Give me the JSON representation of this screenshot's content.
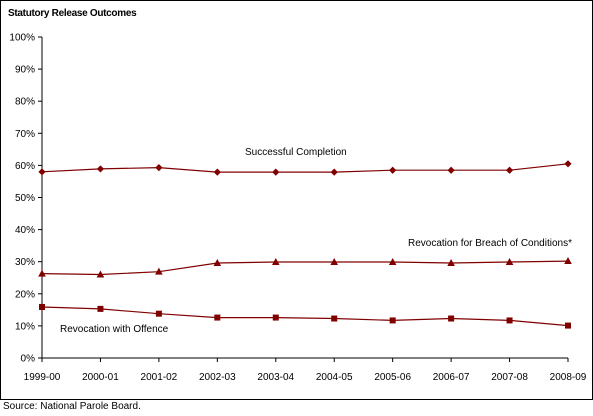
{
  "chart_data": {
    "type": "line",
    "title": "Statutory Release Outcomes",
    "source": "Source: National Parole Board.",
    "categories": [
      "1999-00",
      "2000-01",
      "2001-02",
      "2002-03",
      "2003-04",
      "2004-05",
      "2005-06",
      "2006-07",
      "2007-08",
      "2008-09"
    ],
    "y_ticks": [
      "0%",
      "10%",
      "20%",
      "30%",
      "40%",
      "50%",
      "60%",
      "70%",
      "80%",
      "90%",
      "100%"
    ],
    "ylim": [
      0,
      100
    ],
    "grid": false,
    "legend": "none",
    "series": [
      {
        "name": "Successful Completion",
        "marker": "diamond",
        "color": "#800000",
        "values": [
          58,
          58.9,
          59.3,
          57.9,
          57.9,
          57.9,
          58.5,
          58.5,
          58.5,
          60.5
        ]
      },
      {
        "name": "Revocation for Breach of Conditions*",
        "marker": "triangle",
        "color": "#800000",
        "values": [
          26.3,
          26,
          26.9,
          29.6,
          29.9,
          29.9,
          29.9,
          29.6,
          29.9,
          30.2
        ]
      },
      {
        "name": "Revocation with Offence",
        "marker": "square",
        "color": "#800000",
        "values": [
          15.9,
          15.3,
          13.8,
          12.6,
          12.6,
          12.3,
          11.7,
          12.3,
          11.7,
          10.1
        ]
      }
    ]
  }
}
